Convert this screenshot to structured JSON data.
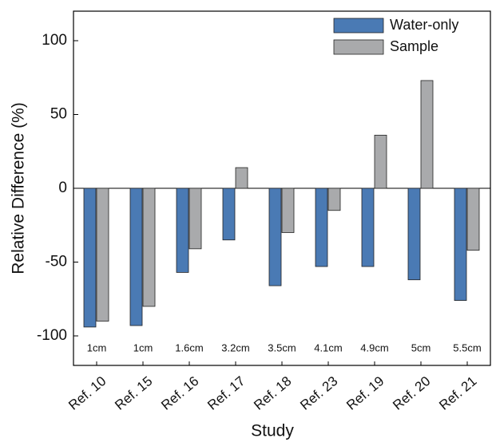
{
  "chart_data": {
    "type": "bar",
    "x_label": "Study",
    "y_label": "Relative Difference (%)",
    "categories": [
      "Ref. 10",
      "Ref. 15",
      "Ref. 16",
      "Ref. 17",
      "Ref. 18",
      "Ref. 23",
      "Ref. 19",
      "Ref. 20",
      "Ref. 21"
    ],
    "annotations": [
      "1cm",
      "1cm",
      "1.6cm",
      "3.2cm",
      "3.5cm",
      "4.1cm",
      "4.9cm",
      "5cm",
      "5.5cm"
    ],
    "series": [
      {
        "name": "Water-only",
        "color": "#4a7ab4",
        "values": [
          -94,
          -93,
          -57,
          -35,
          -66,
          -53,
          -53,
          -62,
          -76
        ]
      },
      {
        "name": "Sample",
        "color": "#a9aaac",
        "values": [
          -90,
          -80,
          -41,
          14,
          -30,
          -15,
          36,
          73,
          -42
        ]
      }
    ],
    "ylim": [
      -120,
      120
    ],
    "yticks": [
      -100,
      -50,
      0,
      50,
      100
    ],
    "legend": "upper right"
  }
}
